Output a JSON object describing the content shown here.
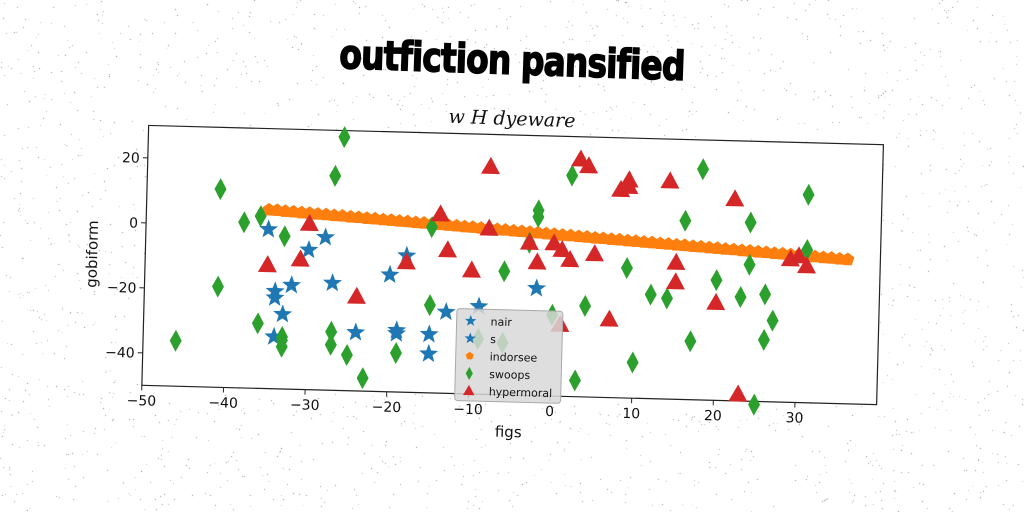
{
  "title": "outfiction pansified",
  "subtitle": "w H dyeware",
  "chart_data": {
    "type": "scatter",
    "xlabel": "figs",
    "ylabel": "gobiform",
    "xlim": [
      -50,
      40
    ],
    "ylim": [
      -50,
      30
    ],
    "xticks": [
      -50,
      -40,
      -30,
      -20,
      -10,
      0,
      10,
      20,
      30
    ],
    "yticks": [
      -40,
      -20,
      0,
      20
    ],
    "grid": false,
    "legend_position": "bottom-center",
    "series": [
      {
        "name": "nair",
        "marker": "star",
        "color": "#1f77b4",
        "points": [
          [
            -35,
            -1
          ],
          [
            -34,
            -20
          ],
          [
            -34,
            -22
          ],
          [
            -33,
            -27
          ],
          [
            -34,
            -34
          ],
          [
            -32,
            -18
          ],
          [
            -30,
            -7
          ],
          [
            -28,
            -3
          ],
          [
            -27,
            -17
          ],
          [
            -24,
            -32
          ],
          [
            -20,
            -14
          ],
          [
            -18,
            -8
          ],
          [
            -19,
            -31
          ],
          [
            -19,
            -32
          ],
          [
            -15,
            -32
          ],
          [
            -15,
            -38
          ],
          [
            -13,
            -25
          ],
          [
            -9,
            -23
          ],
          [
            -2,
            -17
          ]
        ]
      },
      {
        "name": "s",
        "marker": "star",
        "color": "#1f77b4",
        "points": []
      },
      {
        "name": "indorsee",
        "marker": "pentagon",
        "color": "#ff7f0e",
        "points": [
          [
            -35,
            5
          ],
          [
            -34,
            4.9
          ],
          [
            -33,
            4.7
          ],
          [
            -32,
            4.6
          ],
          [
            -31,
            4.4
          ],
          [
            -30,
            4.3
          ],
          [
            -29,
            4.1
          ],
          [
            -28,
            4
          ],
          [
            -27,
            3.8
          ],
          [
            -26,
            3.7
          ],
          [
            -25,
            3.5
          ],
          [
            -24,
            3.4
          ],
          [
            -23,
            3.2
          ],
          [
            -22,
            3.1
          ],
          [
            -21,
            2.9
          ],
          [
            -20,
            2.8
          ],
          [
            -19,
            2.6
          ],
          [
            -18,
            2.5
          ],
          [
            -17,
            2.3
          ],
          [
            -16,
            2.2
          ],
          [
            -15,
            2
          ],
          [
            -14,
            1.9
          ],
          [
            -13,
            1.7
          ],
          [
            -12,
            1.6
          ],
          [
            -11,
            1.4
          ],
          [
            -10,
            1.3
          ],
          [
            -9,
            1.1
          ],
          [
            -8,
            1
          ],
          [
            -7,
            0.8
          ],
          [
            -6,
            0.7
          ],
          [
            -5,
            0.5
          ],
          [
            -4,
            0.4
          ],
          [
            -3,
            0.2
          ],
          [
            -2,
            0.1
          ],
          [
            -1,
            -0.1
          ],
          [
            0,
            -0.2
          ],
          [
            1,
            -0.4
          ],
          [
            2,
            -0.5
          ],
          [
            3,
            -0.7
          ],
          [
            4,
            -0.8
          ],
          [
            5,
            -1
          ],
          [
            6,
            -1.1
          ],
          [
            7,
            -1.3
          ],
          [
            8,
            -1.4
          ],
          [
            9,
            -1.6
          ],
          [
            10,
            -1.7
          ],
          [
            11,
            -1.9
          ],
          [
            12,
            -2
          ],
          [
            13,
            -2.2
          ],
          [
            14,
            -2.3
          ],
          [
            15,
            -2.5
          ],
          [
            16,
            -2.6
          ],
          [
            17,
            -2.8
          ],
          [
            18,
            -2.9
          ],
          [
            19,
            -3.1
          ],
          [
            20,
            -3.2
          ],
          [
            21,
            -3.4
          ],
          [
            22,
            -3.5
          ],
          [
            23,
            -3.7
          ],
          [
            24,
            -3.8
          ],
          [
            25,
            -4
          ],
          [
            26,
            -4.1
          ],
          [
            27,
            -4.3
          ],
          [
            28,
            -4.4
          ],
          [
            29,
            -4.6
          ],
          [
            30,
            -4.7
          ],
          [
            31,
            -4.9
          ],
          [
            32,
            -5
          ],
          [
            33,
            -5.2
          ],
          [
            34,
            -5.3
          ],
          [
            35,
            -5.5
          ],
          [
            36,
            -5.6
          ]
        ]
      },
      {
        "name": "swoops",
        "marker": "thin_diamond",
        "color": "#2ca02c",
        "points": [
          [
            -46,
            -36
          ],
          [
            -41,
            -19
          ],
          [
            -41,
            11
          ],
          [
            -38,
            1
          ],
          [
            -36,
            -30
          ],
          [
            -36,
            3
          ],
          [
            -33,
            -34
          ],
          [
            -33,
            -35
          ],
          [
            -33,
            -37
          ],
          [
            -33,
            -3
          ],
          [
            -27,
            -36
          ],
          [
            -27,
            -32
          ],
          [
            -27,
            16
          ],
          [
            -26,
            28
          ],
          [
            -25,
            -39
          ],
          [
            -23,
            -46
          ],
          [
            -19,
            -38
          ],
          [
            -15,
            -23
          ],
          [
            -15,
            1
          ],
          [
            -9,
            -33
          ],
          [
            -6,
            -34
          ],
          [
            -6,
            -12
          ],
          [
            -3,
            -3
          ],
          [
            -2,
            5
          ],
          [
            -2,
            7
          ],
          [
            0,
            -25
          ],
          [
            2,
            18
          ],
          [
            3,
            -45
          ],
          [
            4,
            -22
          ],
          [
            9,
            -10
          ],
          [
            10,
            -39
          ],
          [
            12,
            -18
          ],
          [
            14,
            -19
          ],
          [
            16,
            5
          ],
          [
            17,
            -32
          ],
          [
            18,
            21
          ],
          [
            20,
            -13
          ],
          [
            23,
            -18
          ],
          [
            24,
            -8
          ],
          [
            24,
            5
          ],
          [
            25,
            -51
          ],
          [
            26,
            -31
          ],
          [
            26,
            -17
          ],
          [
            27,
            -25
          ],
          [
            31,
            -3
          ],
          [
            31,
            14
          ]
        ]
      },
      {
        "name": "hypermoral",
        "marker": "triangle",
        "color": "#d62728",
        "points": [
          [
            -35,
            -12
          ],
          [
            -31,
            -10
          ],
          [
            -30,
            1
          ],
          [
            -24,
            -21
          ],
          [
            -18,
            -10
          ],
          [
            -14,
            5
          ],
          [
            -13,
            -6
          ],
          [
            -10,
            -12
          ],
          [
            -8,
            1
          ],
          [
            -8,
            20
          ],
          [
            -3,
            -3
          ],
          [
            -2,
            -9
          ],
          [
            0,
            -3
          ],
          [
            1,
            -5
          ],
          [
            1,
            -28
          ],
          [
            2,
            -8
          ],
          [
            3,
            23
          ],
          [
            4,
            21
          ],
          [
            5,
            -6
          ],
          [
            7,
            -26
          ],
          [
            8,
            14
          ],
          [
            9,
            17
          ],
          [
            9,
            15
          ],
          [
            14,
            17
          ],
          [
            15,
            -8
          ],
          [
            15,
            -14
          ],
          [
            20,
            -20
          ],
          [
            22,
            12
          ],
          [
            23,
            -48
          ],
          [
            29,
            -6
          ],
          [
            30,
            -5
          ],
          [
            31,
            -8
          ]
        ]
      }
    ]
  }
}
